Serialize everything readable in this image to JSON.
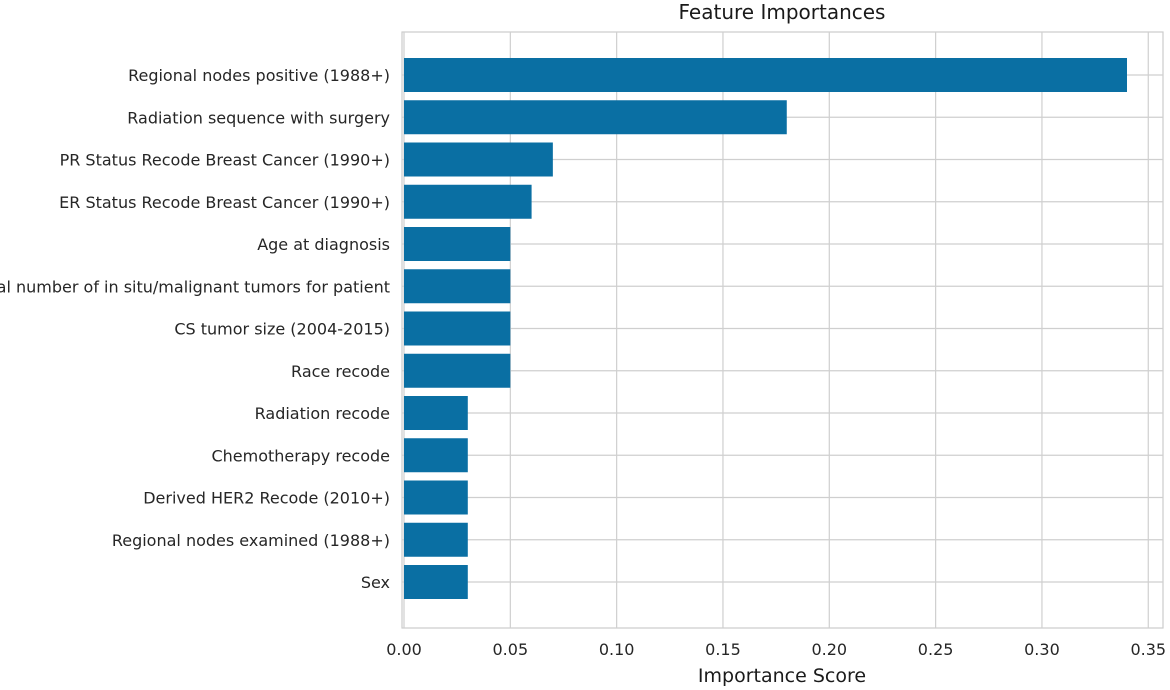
{
  "chart_data": {
    "type": "bar",
    "orientation": "horizontal",
    "title": "Feature Importances",
    "xlabel": "Importance Score",
    "ylabel": "",
    "xlim": [
      0,
      0.355
    ],
    "xticks": [
      0.0,
      0.05,
      0.1,
      0.15,
      0.2,
      0.25,
      0.3,
      0.35
    ],
    "xtick_labels": [
      "0.00",
      "0.05",
      "0.10",
      "0.15",
      "0.20",
      "0.25",
      "0.30",
      "0.35"
    ],
    "grid": true,
    "bar_color": "#0a6fa3",
    "categories": [
      "Regional nodes positive (1988+)",
      "Radiation sequence with surgery",
      "PR Status Recode Breast Cancer (1990+)",
      "ER Status Recode Breast Cancer (1990+)",
      "Age at diagnosis",
      "Total number of in situ/malignant tumors for patient",
      "CS tumor size (2004-2015)",
      "Race recode",
      "Radiation recode",
      "Chemotherapy recode",
      "Derived HER2 Recode (2010+)",
      "Regional nodes examined (1988+)",
      "Sex"
    ],
    "values": [
      0.34,
      0.18,
      0.07,
      0.06,
      0.05,
      0.05,
      0.05,
      0.05,
      0.03,
      0.03,
      0.03,
      0.03,
      0.03
    ]
  }
}
